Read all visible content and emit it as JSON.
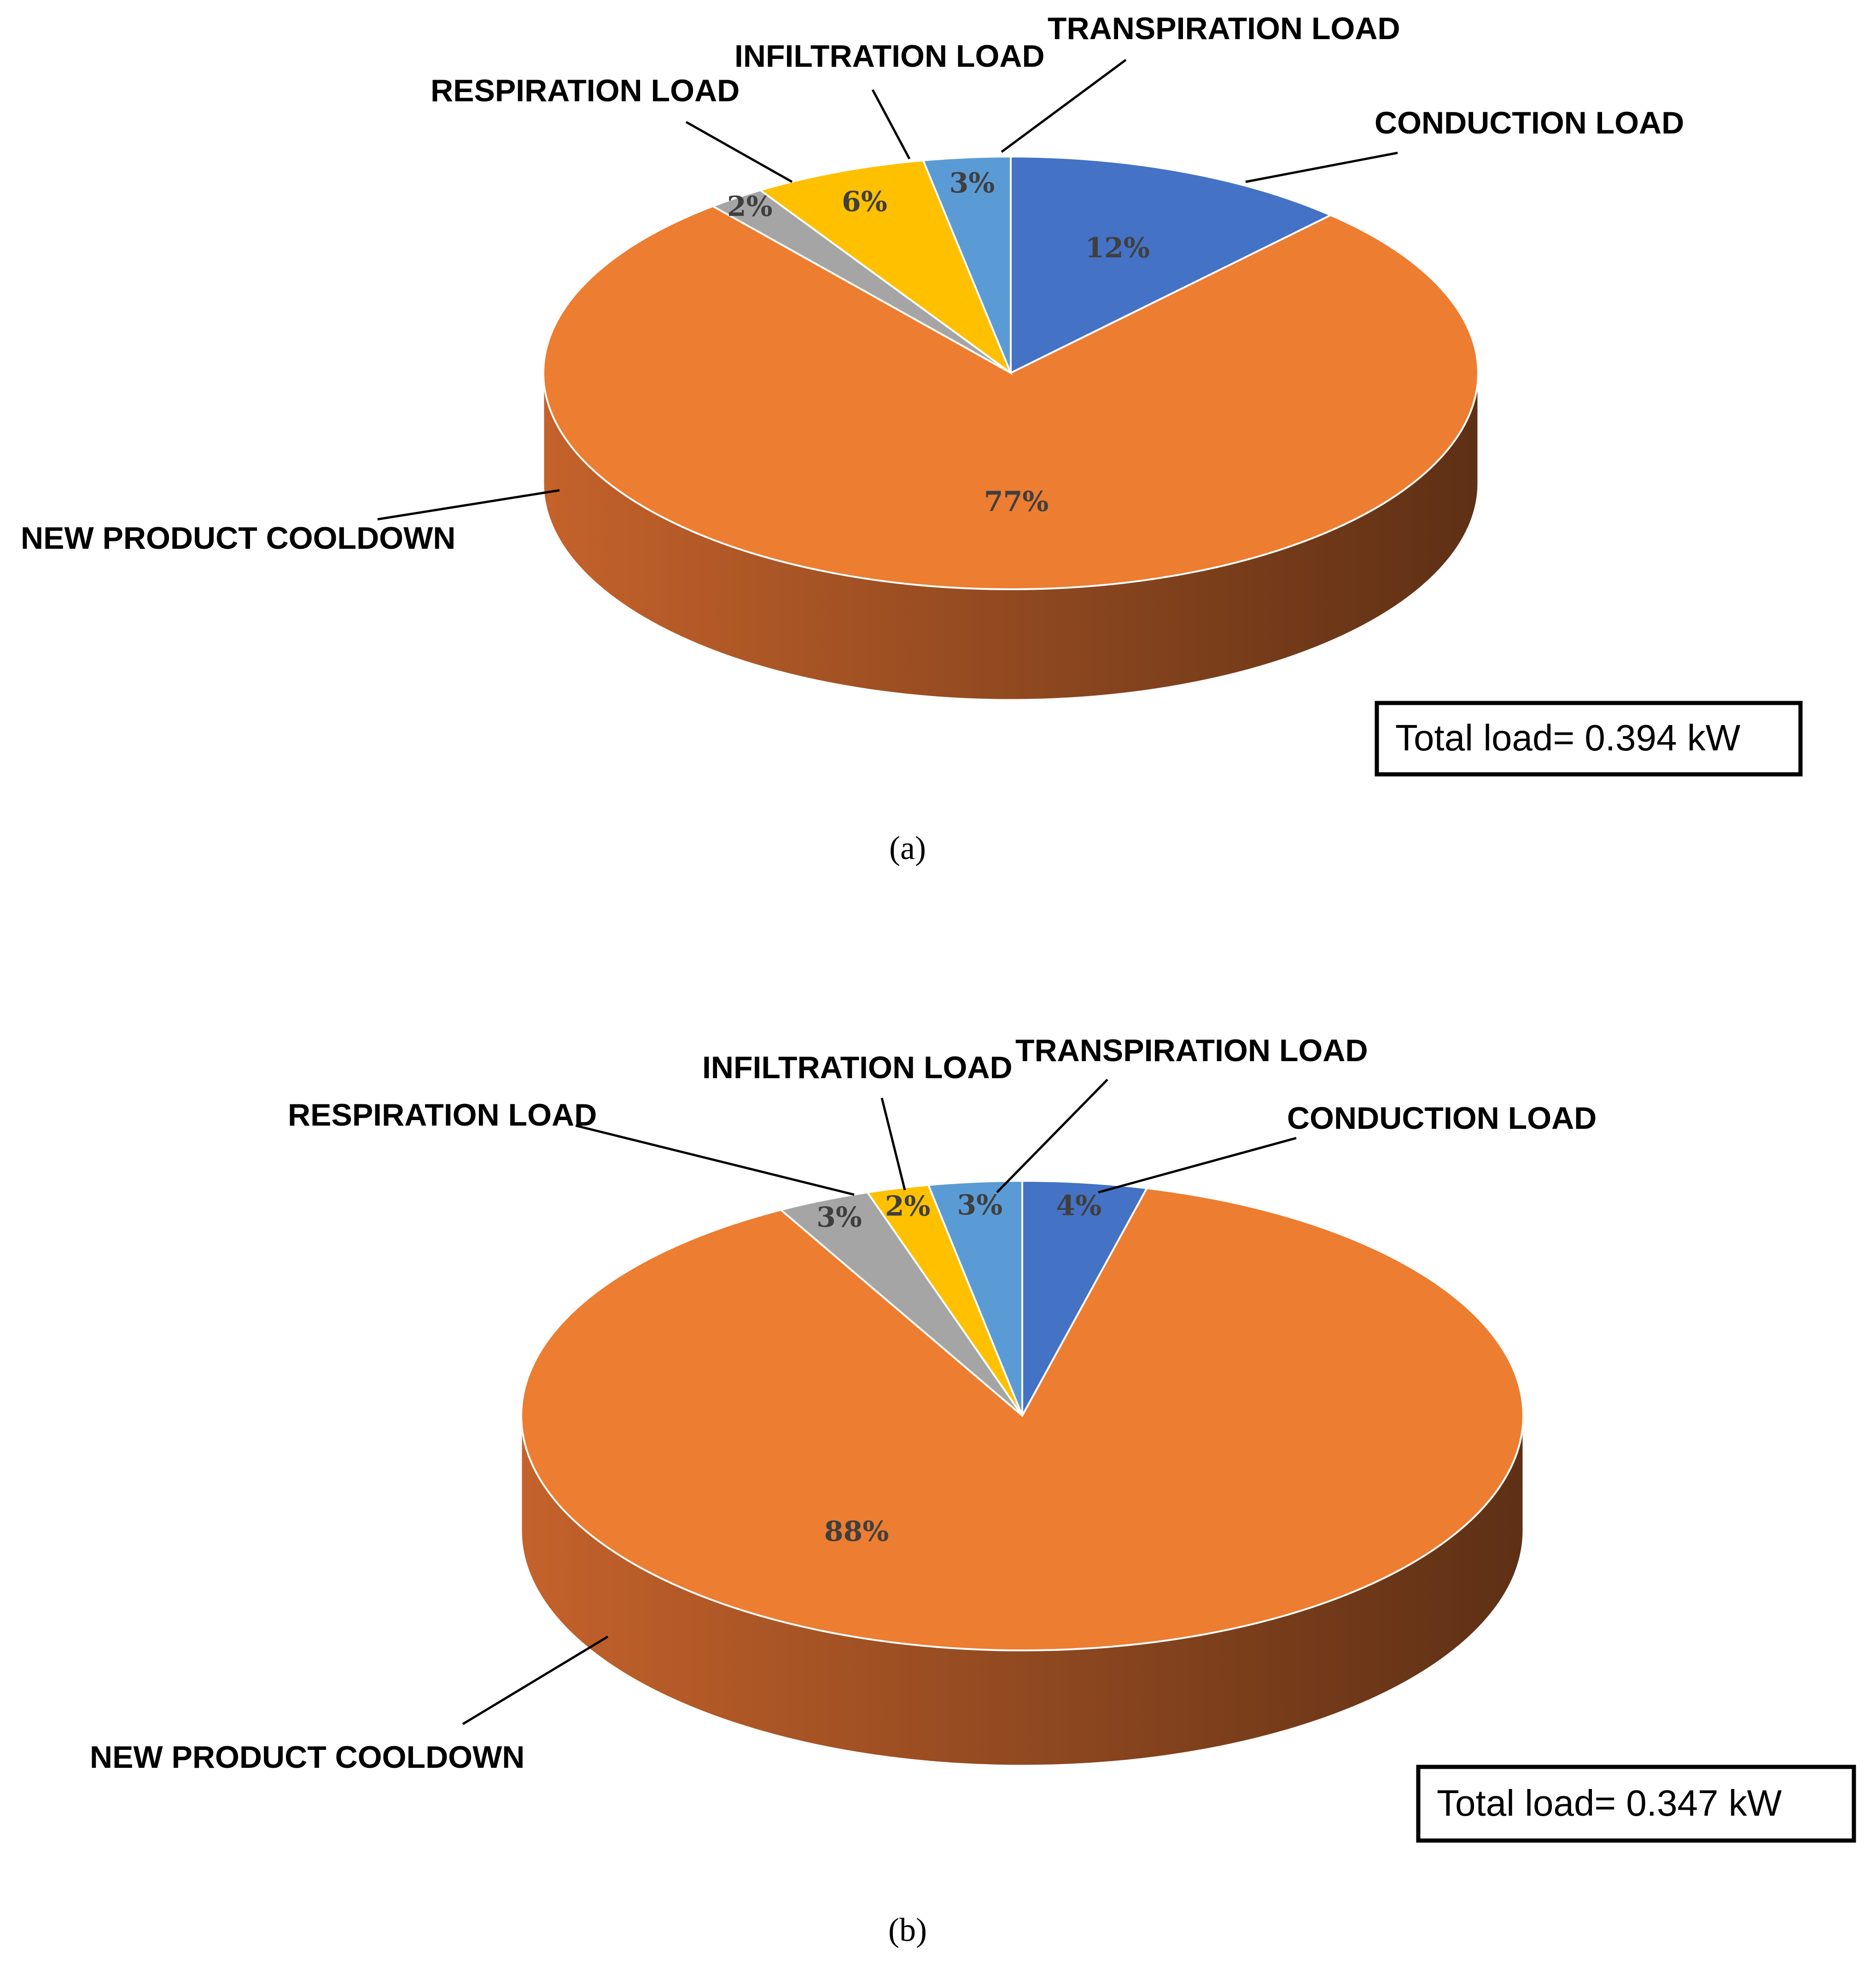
{
  "colors": {
    "conduction": "#4472C4",
    "transpiration": "#5B9BD5",
    "infiltration": "#FFC000",
    "respiration": "#A5A5A5",
    "cooldown": "#ED7D31",
    "side_light": "#C4622B",
    "side_dark": "#5E3015"
  },
  "chart_data": [
    {
      "type": "pie",
      "caption": "(a)",
      "total_label": "Total load= 0.394 kW",
      "slices": [
        {
          "key": "conduction",
          "label": "CONDUCTION LOAD",
          "value": 12,
          "pct_label": "12%"
        },
        {
          "key": "cooldown",
          "label": "NEW PRODUCT COOLDOWN",
          "value": 77,
          "pct_label": "77%"
        },
        {
          "key": "respiration",
          "label": "RESPIRATION LOAD",
          "value": 2,
          "pct_label": "2%"
        },
        {
          "key": "infiltration",
          "label": "INFILTRATION LOAD",
          "value": 6,
          "pct_label": "6%"
        },
        {
          "key": "transpiration",
          "label": "TRANSPIRATION LOAD",
          "value": 3,
          "pct_label": "3%"
        }
      ]
    },
    {
      "type": "pie",
      "caption": "(b)",
      "total_label": "Total load= 0.347 kW",
      "slices": [
        {
          "key": "conduction",
          "label": "CONDUCTION LOAD",
          "value": 4,
          "pct_label": "4%"
        },
        {
          "key": "cooldown",
          "label": "NEW PRODUCT COOLDOWN",
          "value": 88,
          "pct_label": "88%"
        },
        {
          "key": "respiration",
          "label": "RESPIRATION LOAD",
          "value": 3,
          "pct_label": "3%"
        },
        {
          "key": "infiltration",
          "label": "INFILTRATION LOAD",
          "value": 2,
          "pct_label": "2%"
        },
        {
          "key": "transpiration",
          "label": "TRANSPIRATION LOAD",
          "value": 3,
          "pct_label": "3%"
        }
      ]
    }
  ]
}
